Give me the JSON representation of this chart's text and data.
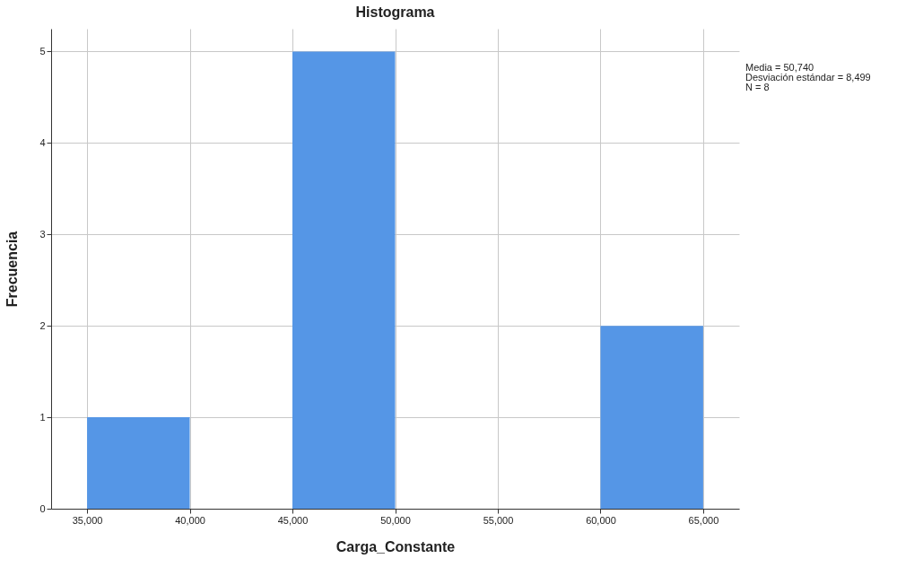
{
  "chart_data": {
    "type": "histogram",
    "title": "Histograma",
    "xlabel": "Carga_Constante",
    "ylabel": "Frecuencia",
    "bins": [
      35000,
      40000,
      45000,
      50000,
      55000,
      60000,
      65000
    ],
    "values": [
      1,
      0,
      5,
      0,
      0,
      2
    ],
    "color": "#5596e6",
    "xlim": [
      33250,
      66750
    ],
    "xticks": [
      {
        "value": 35000,
        "label": "35,000"
      },
      {
        "value": 40000,
        "label": "40,000"
      },
      {
        "value": 45000,
        "label": "45,000"
      },
      {
        "value": 50000,
        "label": "50,000"
      },
      {
        "value": 55000,
        "label": "55,000"
      },
      {
        "value": 60000,
        "label": "60,000"
      },
      {
        "value": 65000,
        "label": "65,000"
      }
    ],
    "ylim": [
      0,
      5.25
    ],
    "yticks": [
      0,
      1,
      2,
      3,
      4,
      5
    ],
    "grid": true,
    "annotations": [
      "Media = 50,740",
      "Desviación estándar = 8,499",
      "N = 8"
    ]
  }
}
